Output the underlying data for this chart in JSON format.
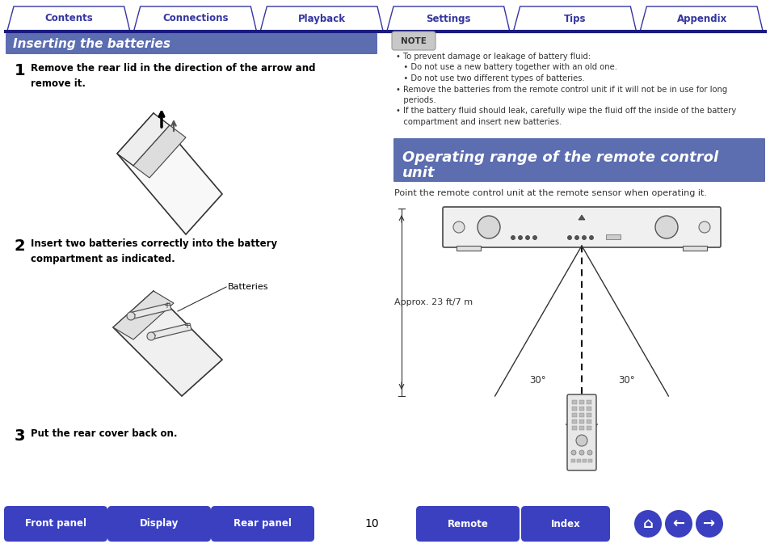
{
  "bg_color": "#ffffff",
  "page_number": "10",
  "tab_labels": [
    "Contents",
    "Connections",
    "Playback",
    "Settings",
    "Tips",
    "Appendix"
  ],
  "header_text": "Inserting the batteries",
  "section2_text_line1": "Operating range of the remote control",
  "section2_text_line2": "unit",
  "step1_num": "1",
  "step1_text": "Remove the rear lid in the direction of the arrow and\nremove it.",
  "step2_num": "2",
  "step2_text": "Insert two batteries correctly into the battery\ncompartment as indicated.",
  "step3_num": "3",
  "step3_text": "Put the rear cover back on.",
  "batteries_label": "Batteries",
  "note_title": "NOTE",
  "note_lines": [
    "• To prevent damage or leakage of battery fluid:",
    "   • Do not use a new battery together with an old one.",
    "   • Do not use two different types of batteries.",
    "• Remove the batteries from the remote control unit if it will not be in use for long",
    "   periods.",
    "• If the battery fluid should leak, carefully wipe the fluid off the inside of the battery",
    "   compartment and insert new batteries."
  ],
  "range_desc": "Point the remote control unit at the remote sensor when operating it.",
  "approx_text": "Approx. 23 ft/7 m",
  "angle_text1": "30°",
  "angle_text2": "30°",
  "bottom_buttons": [
    "Front panel",
    "Display",
    "Rear panel",
    "Remote",
    "Index"
  ],
  "header_color": "#5c6db0",
  "tab_text_color": "#3535a0",
  "tab_border_color": "#3535a0",
  "divider_color": "#1a1a80",
  "btn_color": "#3a40c0",
  "btn_text_color": "#ffffff",
  "note_bg": "#c8c8c8",
  "body_text_color": "#000000",
  "gray_text_color": "#333333"
}
